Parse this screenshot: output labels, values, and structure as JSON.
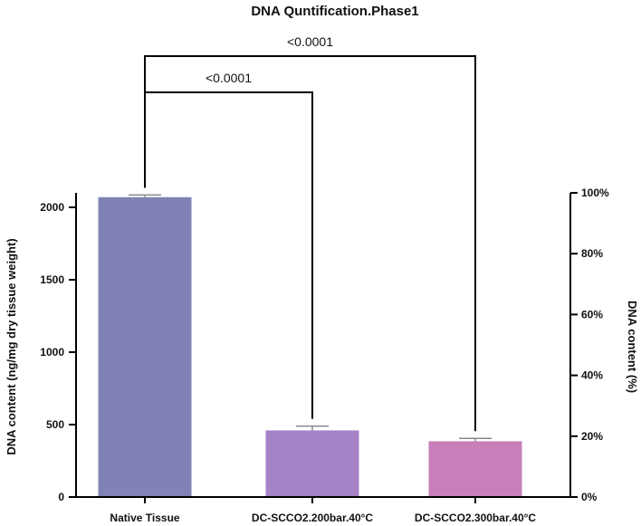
{
  "chart_data": {
    "type": "bar",
    "title": "DNA Quntification.Phase1",
    "categories": [
      "Native Tissue",
      "DC-SCCO2.200bar.40°C",
      "DC-SCCO2.300bar.40°C"
    ],
    "values": [
      2070,
      460,
      385
    ],
    "errors": [
      15,
      30,
      20
    ],
    "colors": [
      "#8081b5",
      "#a682c8",
      "#c77fba"
    ],
    "ylabel": "DNA content (ng/mg dry tissue weight)",
    "ylim": [
      0,
      2100
    ],
    "yticks": [
      0,
      500,
      1000,
      1500,
      2000
    ],
    "y2label": "DNA content (%)",
    "y2lim": [
      0,
      100
    ],
    "y2ticks": [
      "0%",
      "20%",
      "40%",
      "60%",
      "80%",
      "100%"
    ],
    "grid": false,
    "significance": [
      {
        "from": 0,
        "to": 1,
        "label": "<0.0001"
      },
      {
        "from": 0,
        "to": 2,
        "label": "<0.0001"
      }
    ]
  }
}
